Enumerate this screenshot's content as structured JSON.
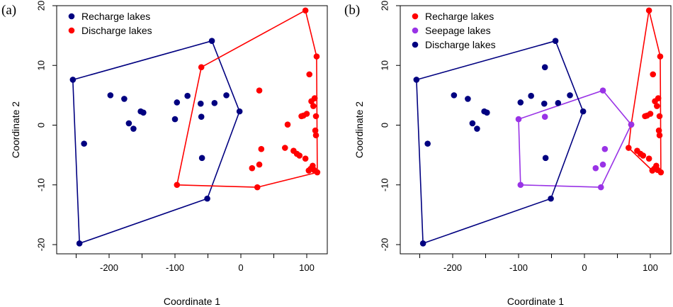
{
  "chart_data": [
    {
      "type": "scatter",
      "panel_label": "(a)",
      "xlabel": "Coordinate 1",
      "ylabel": "Coordinate 2",
      "xlim": [
        -265,
        122
      ],
      "ylim": [
        -21,
        20
      ],
      "xticks": [
        -200,
        -100,
        0,
        100
      ],
      "yticks": [
        -20,
        -10,
        0,
        10,
        20
      ],
      "legend_position": "top-left",
      "series": [
        {
          "name": "Recharge lakes",
          "color": "#000080",
          "points": [
            [
              -255,
              7.6
            ],
            [
              -245,
              -19.8
            ],
            [
              -238,
              -3.1
            ],
            [
              -198,
              5.0
            ],
            [
              -177,
              4.4
            ],
            [
              -170,
              0.3
            ],
            [
              -163,
              -0.6
            ],
            [
              -152,
              2.3
            ],
            [
              -148,
              2.1
            ],
            [
              -100,
              1.0
            ],
            [
              -97,
              3.8
            ],
            [
              -81,
              4.9
            ],
            [
              -61,
              3.6
            ],
            [
              -60,
              1.4
            ],
            [
              -59,
              -5.5
            ],
            [
              -51,
              -12.3
            ],
            [
              -44,
              14.1
            ],
            [
              -40,
              3.7
            ],
            [
              -22,
              5.0
            ],
            [
              -2,
              2.3
            ]
          ],
          "hull": [
            [
              -255,
              7.6
            ],
            [
              -44,
              14.1
            ],
            [
              -2,
              2.3
            ],
            [
              -51,
              -12.3
            ],
            [
              -245,
              -19.8
            ]
          ]
        },
        {
          "name": "Discharge lakes",
          "color": "#ff0000",
          "points": [
            [
              -60,
              9.7
            ],
            [
              -97,
              -10.0
            ],
            [
              25,
              -10.4
            ],
            [
              17,
              -7.2
            ],
            [
              28,
              5.8
            ],
            [
              28,
              -6.6
            ],
            [
              31,
              -4.0
            ],
            [
              67,
              -3.8
            ],
            [
              71,
              0.1
            ],
            [
              80,
              -4.3
            ],
            [
              85,
              -4.8
            ],
            [
              89,
              -5.1
            ],
            [
              92,
              1.5
            ],
            [
              95,
              1.6
            ],
            [
              98,
              -5.6
            ],
            [
              98,
              19.2
            ],
            [
              100,
              1.9
            ],
            [
              103,
              -7.6
            ],
            [
              104,
              8.5
            ],
            [
              106,
              -7.3
            ],
            [
              107,
              4.0
            ],
            [
              109,
              -6.8
            ],
            [
              110,
              3.2
            ],
            [
              111,
              -7.5
            ],
            [
              112,
              4.5
            ],
            [
              113,
              -0.9
            ],
            [
              114,
              1.5
            ],
            [
              114,
              -1.7
            ],
            [
              115,
              11.5
            ],
            [
              116,
              -7.9
            ]
          ],
          "hull": [
            [
              -60,
              9.7
            ],
            [
              98,
              19.2
            ],
            [
              115,
              11.5
            ],
            [
              116,
              -7.9
            ],
            [
              25,
              -10.4
            ],
            [
              -97,
              -10.0
            ]
          ]
        }
      ]
    },
    {
      "type": "scatter",
      "panel_label": "(b)",
      "xlabel": "Coordinate 1",
      "ylabel": "Coordinate 2",
      "xlim": [
        -265,
        122
      ],
      "ylim": [
        -21,
        20
      ],
      "xticks": [
        -200,
        -100,
        0,
        100
      ],
      "yticks": [
        -20,
        -10,
        0,
        10,
        20
      ],
      "legend_position": "top-left",
      "series": [
        {
          "name": "Recharge lakes",
          "color": "#ff0000",
          "points": [
            [
              67,
              -3.8
            ],
            [
              80,
              -4.3
            ],
            [
              85,
              -4.8
            ],
            [
              89,
              -5.1
            ],
            [
              92,
              1.5
            ],
            [
              95,
              1.6
            ],
            [
              98,
              -5.6
            ],
            [
              98,
              19.2
            ],
            [
              100,
              1.9
            ],
            [
              103,
              -7.6
            ],
            [
              104,
              8.5
            ],
            [
              106,
              -7.3
            ],
            [
              107,
              4.0
            ],
            [
              109,
              -6.8
            ],
            [
              110,
              3.2
            ],
            [
              111,
              -7.5
            ],
            [
              112,
              4.5
            ],
            [
              113,
              -0.9
            ],
            [
              114,
              1.5
            ],
            [
              114,
              -1.7
            ],
            [
              115,
              11.5
            ],
            [
              116,
              -7.9
            ],
            [
              71,
              0.1
            ]
          ],
          "hull": [
            [
              98,
              19.2
            ],
            [
              115,
              11.5
            ],
            [
              116,
              -7.9
            ],
            [
              103,
              -7.6
            ],
            [
              67,
              -3.8
            ],
            [
              71,
              0.1
            ]
          ]
        },
        {
          "name": "Seepage lakes",
          "color": "#9933e6",
          "points": [
            [
              -100,
              1.0
            ],
            [
              -97,
              -10.0
            ],
            [
              -60,
              1.4
            ],
            [
              17,
              -7.2
            ],
            [
              25,
              -10.4
            ],
            [
              28,
              5.8
            ],
            [
              28,
              -6.6
            ],
            [
              31,
              -4.0
            ],
            [
              71,
              0.1
            ]
          ],
          "hull": [
            [
              -100,
              1.0
            ],
            [
              28,
              5.8
            ],
            [
              71,
              0.1
            ],
            [
              25,
              -10.4
            ],
            [
              -97,
              -10.0
            ]
          ]
        },
        {
          "name": "Discharge lakes",
          "color": "#000080",
          "points": [
            [
              -255,
              7.6
            ],
            [
              -245,
              -19.8
            ],
            [
              -238,
              -3.1
            ],
            [
              -198,
              5.0
            ],
            [
              -177,
              4.4
            ],
            [
              -170,
              0.3
            ],
            [
              -163,
              -0.6
            ],
            [
              -152,
              2.3
            ],
            [
              -148,
              2.1
            ],
            [
              -97,
              3.8
            ],
            [
              -81,
              4.9
            ],
            [
              -61,
              3.6
            ],
            [
              -60,
              9.7
            ],
            [
              -59,
              -5.5
            ],
            [
              -51,
              -12.3
            ],
            [
              -44,
              14.1
            ],
            [
              -40,
              3.7
            ],
            [
              -22,
              5.0
            ],
            [
              -2,
              2.3
            ]
          ],
          "hull": [
            [
              -255,
              7.6
            ],
            [
              -44,
              14.1
            ],
            [
              -2,
              2.3
            ],
            [
              -51,
              -12.3
            ],
            [
              -245,
              -19.8
            ]
          ]
        }
      ]
    }
  ]
}
